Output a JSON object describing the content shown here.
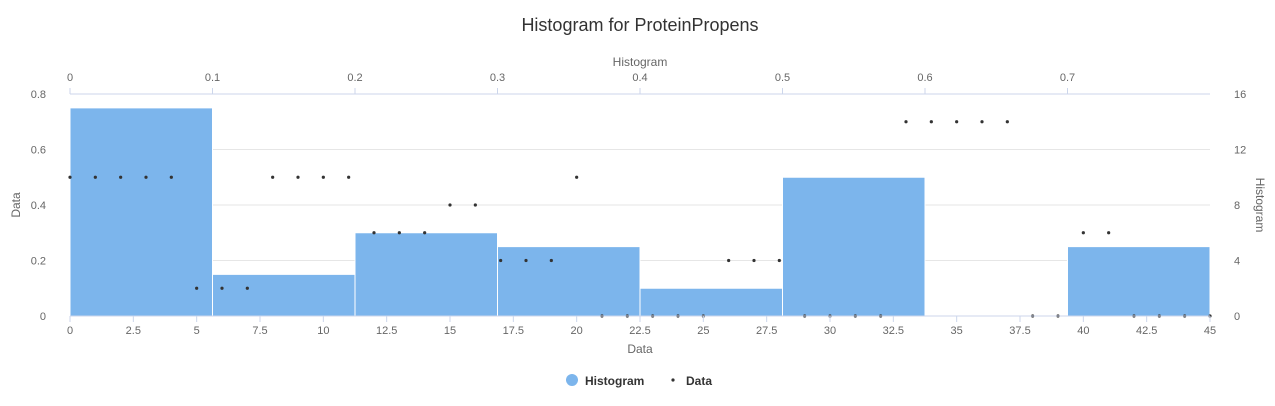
{
  "chart_data": {
    "type": "bar",
    "title": "Histogram for ProteinPropens",
    "colors": {
      "histogram": "#7cb5ec",
      "data_points": "#333333",
      "grid": "#e6e6e6",
      "axis_line": "#ccd6eb"
    },
    "x_bottom": {
      "label": "Data",
      "range": [
        0,
        45
      ],
      "ticks": [
        "0",
        "2.5",
        "5",
        "7.5",
        "10",
        "12.5",
        "15",
        "17.5",
        "20",
        "22.5",
        "25",
        "27.5",
        "30",
        "32.5",
        "35",
        "37.5",
        "40",
        "42.5",
        "45"
      ]
    },
    "x_top": {
      "label": "Histogram",
      "range": [
        0,
        0.8
      ],
      "ticks": [
        "0",
        "0.1",
        "0.2",
        "0.3",
        "0.4",
        "0.5",
        "0.6",
        "0.7"
      ]
    },
    "y_left": {
      "label": "Data",
      "range": [
        0,
        0.8
      ],
      "ticks": [
        "0",
        "0.2",
        "0.4",
        "0.6",
        "0.8"
      ]
    },
    "y_right": {
      "label": "Histogram",
      "range": [
        0,
        16
      ],
      "ticks": [
        "0",
        "4",
        "8",
        "12",
        "16"
      ]
    },
    "histogram": {
      "name": "Histogram",
      "bins": [
        {
          "x0": 0,
          "x1": 0.1,
          "y": 0.75
        },
        {
          "x0": 0.1,
          "x1": 0.2,
          "y": 0.15
        },
        {
          "x0": 0.2,
          "x1": 0.3,
          "y": 0.3
        },
        {
          "x0": 0.3,
          "x1": 0.4,
          "y": 0.25
        },
        {
          "x0": 0.4,
          "x1": 0.5,
          "y": 0.1
        },
        {
          "x0": 0.5,
          "x1": 0.6,
          "y": 0.5
        },
        {
          "x0": 0.6,
          "x1": 0.7,
          "y": 0
        },
        {
          "x0": 0.7,
          "x1": 0.8,
          "y": 0.25
        }
      ]
    },
    "scatter": {
      "name": "Data",
      "x": [
        0,
        1,
        2,
        3,
        4,
        5,
        6,
        7,
        8,
        9,
        10,
        11,
        12,
        13,
        14,
        15,
        16,
        17,
        18,
        19,
        20,
        21,
        22,
        23,
        24,
        25,
        26,
        27,
        28,
        29,
        30,
        31,
        32,
        33,
        34,
        35,
        36,
        37,
        38,
        39,
        40,
        41,
        42,
        43,
        44,
        45
      ],
      "y": [
        10,
        10,
        10,
        10,
        10,
        2,
        2,
        2,
        10,
        10,
        10,
        10,
        6,
        6,
        6,
        8,
        8,
        4,
        4,
        4,
        10,
        0,
        0,
        0,
        0,
        0,
        4,
        4,
        4,
        0,
        0,
        0,
        0,
        14,
        14,
        14,
        14,
        14,
        0,
        0,
        6,
        6,
        0,
        0,
        0,
        0
      ]
    },
    "legend": {
      "placement": "bottom-center",
      "items": [
        "Histogram",
        "Data"
      ]
    }
  }
}
